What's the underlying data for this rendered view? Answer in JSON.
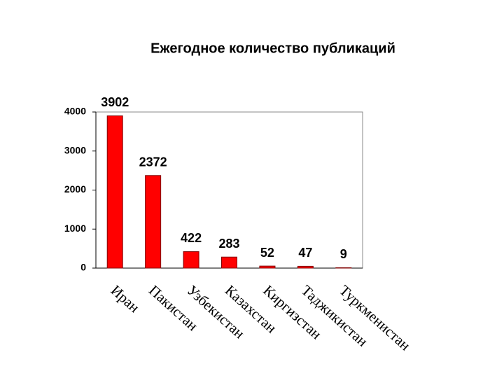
{
  "chart_data": {
    "type": "bar",
    "title": "Ежегодное количество публикаций",
    "categories": [
      "Иран",
      "Пакистан",
      "Узбекистан",
      "Казахстан",
      "Киргизстан",
      "Таджикистан",
      "Туркменистан"
    ],
    "values": [
      3902,
      2372,
      422,
      283,
      52,
      47,
      9
    ],
    "color": "#ff0000",
    "ylim": [
      0,
      4000
    ],
    "yticks": [
      0,
      1000,
      2000,
      3000,
      4000
    ],
    "grid": false
  }
}
